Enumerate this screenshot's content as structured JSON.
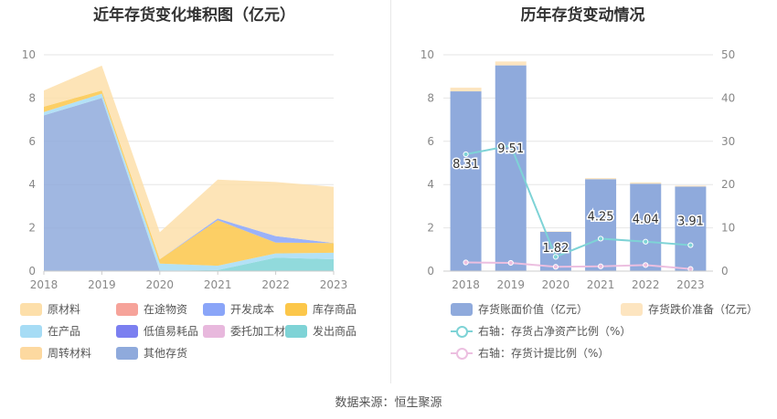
{
  "source_text": "数据来源：恒生聚源",
  "chart_data": [
    {
      "type": "area",
      "title": "近年存货变化堆积图（亿元）",
      "x": [
        "2018",
        "2019",
        "2020",
        "2021",
        "2022",
        "2023"
      ],
      "ylim": [
        0,
        10
      ],
      "yticks": [
        0,
        2,
        4,
        6,
        8,
        10
      ],
      "stacked": true,
      "series": [
        {
          "name": "其他存货",
          "color": "#8faadc",
          "values": [
            7.2,
            8.0,
            0.0,
            0.0,
            0.0,
            0.0
          ]
        },
        {
          "name": "周转材料",
          "color": "#fdd9a0",
          "values": [
            0.0,
            0.0,
            0.0,
            0.0,
            0.0,
            0.0
          ]
        },
        {
          "name": "发出商品",
          "color": "#7ed3d6",
          "values": [
            0.0,
            0.0,
            0.02,
            0.05,
            0.62,
            0.55
          ]
        },
        {
          "name": "委托加工材料",
          "color": "#e8b8dd",
          "values": [
            0.0,
            0.0,
            0.0,
            0.0,
            0.0,
            0.0
          ]
        },
        {
          "name": "低值易耗品",
          "color": "#7b7ff0",
          "values": [
            0.0,
            0.0,
            0.0,
            0.0,
            0.0,
            0.0
          ]
        },
        {
          "name": "在产品",
          "color": "#a6dcf5",
          "values": [
            0.15,
            0.2,
            0.33,
            0.2,
            0.2,
            0.3
          ]
        },
        {
          "name": "库存商品",
          "color": "#fcc74a",
          "values": [
            0.25,
            0.15,
            0.2,
            2.1,
            0.5,
            0.45
          ]
        },
        {
          "name": "开发成本",
          "color": "#8aa5f8",
          "values": [
            0.0,
            0.0,
            0.0,
            0.08,
            0.3,
            0.0
          ]
        },
        {
          "name": "在途物资",
          "color": "#f6a39a",
          "values": [
            0.0,
            0.0,
            0.0,
            0.0,
            0.0,
            0.0
          ]
        },
        {
          "name": "原材料",
          "color": "#fddfaa",
          "values": [
            0.75,
            1.15,
            1.25,
            1.8,
            2.5,
            2.6
          ]
        }
      ],
      "legend_order": [
        "原材料",
        "在途物资",
        "开发成本",
        "库存商品",
        "在产品",
        "低值易耗品",
        "委托加工材料",
        "发出商品",
        "周转材料",
        "其他存货"
      ]
    },
    {
      "type": "bar",
      "title": "历年存货变动情况",
      "categories": [
        "2018",
        "2019",
        "2020",
        "2021",
        "2022",
        "2023"
      ],
      "ylim": [
        0,
        10
      ],
      "yticks": [
        0,
        2,
        4,
        6,
        8,
        10
      ],
      "y2lim": [
        0,
        50
      ],
      "y2ticks": [
        0,
        10,
        20,
        30,
        40,
        50
      ],
      "bar_series": [
        {
          "name": "存货账面价值（亿元）",
          "color": "#8faadc",
          "values": [
            8.31,
            9.51,
            1.82,
            4.25,
            4.04,
            3.91
          ],
          "labels": [
            "8.31",
            "9.51",
            "1.82",
            "4.25",
            "4.04",
            "3.91"
          ]
        },
        {
          "name": "存货跌价准备（亿元）",
          "color": "#fde5c0",
          "values": [
            0.17,
            0.18,
            0.02,
            0.05,
            0.06,
            0.04
          ]
        }
      ],
      "line_series": [
        {
          "name": "右轴：存货占净资产比例（%）",
          "color": "#7ed3d6",
          "axis": "right",
          "values": [
            27.0,
            29.0,
            3.3,
            7.5,
            6.8,
            6.0
          ]
        },
        {
          "name": "右轴：存货计提比例（%）",
          "color": "#ecbfe0",
          "axis": "right",
          "values": [
            2.0,
            1.9,
            1.0,
            1.1,
            1.4,
            0.5
          ]
        }
      ]
    }
  ]
}
